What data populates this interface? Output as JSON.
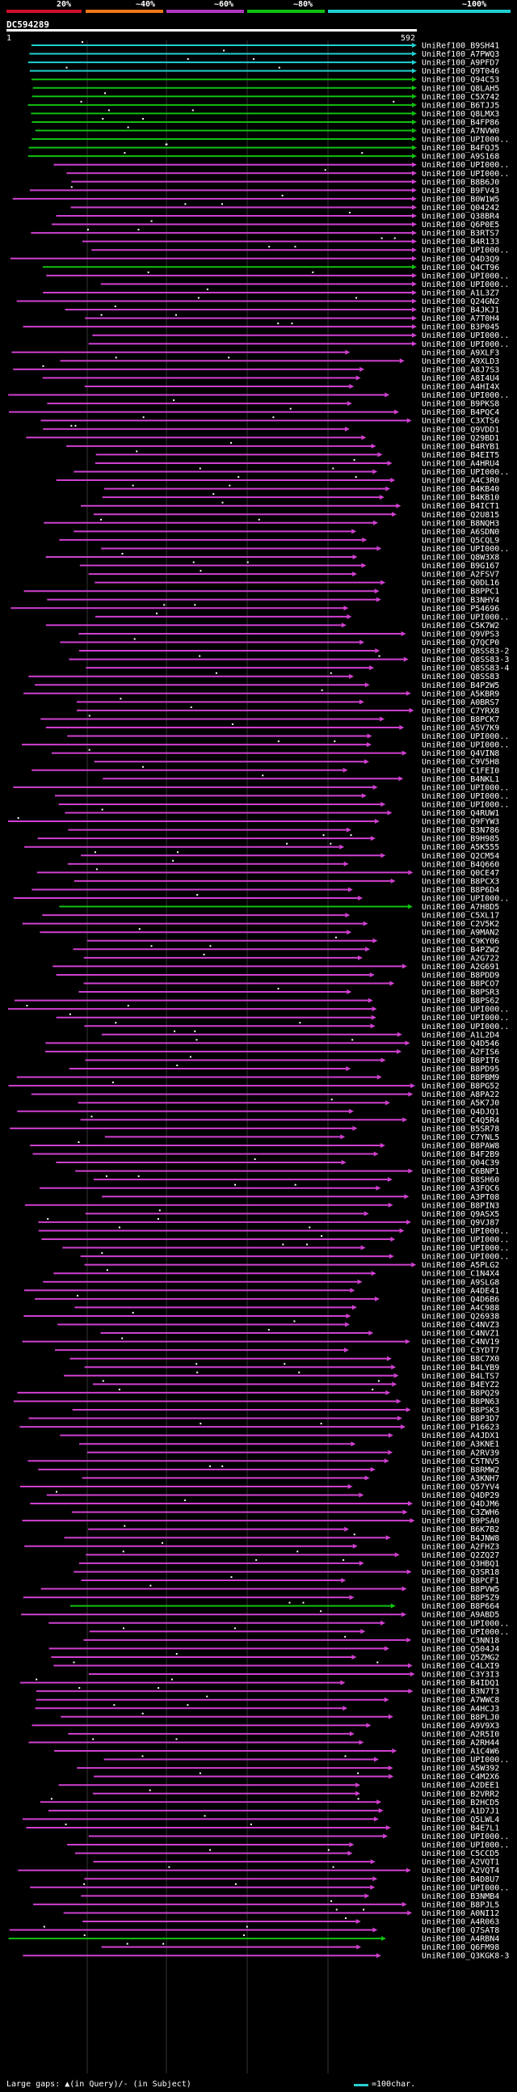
{
  "header": {
    "legend_labels": [
      "20%",
      "~40%",
      "~60%",
      "~80%",
      "~100%"
    ],
    "legend_colors": [
      "#d0102a",
      "#f07818",
      "#b038c0",
      "#10c010",
      "#20d0d0"
    ],
    "query_id": "DC594289",
    "ruler_start": "1",
    "ruler_end": "592"
  },
  "footer": {
    "gaps_text": "Large gaps: ▲(in Query)/- (in Subject)",
    "scale_text": "=100char."
  },
  "chart_data": {
    "type": "alignment",
    "query_length": 592,
    "labels": [
      "UniRef100_B9SH41",
      "UniRef100_A7PWQ3",
      "UniRef100_A9PFD7",
      "UniRef100_Q9T046",
      "UniRef100_Q94C53",
      "UniRef100_Q8LAH5",
      "UniRef100_C5X742",
      "UniRef100_B6TJJ5",
      "UniRef100_Q8LMX3",
      "UniRef100_B4FP86",
      "UniRef100_A7NVW0",
      "UniRef100_UPI000..",
      "UniRef100_B4FQJ5",
      "UniRef100_A9S168",
      "UniRef100_UPI000..",
      "UniRef100_UPI000..",
      "UniRef100_B8B6J0",
      "UniRef100_B9FV43",
      "UniRef100_B0W1W5",
      "UniRef100_Q04242",
      "UniRef100_Q38BR4",
      "UniRef100_Q6P0E5",
      "UniRef100_B3RTS7",
      "UniRef100_B4R133",
      "UniRef100_UPI000..",
      "UniRef100_Q4D3Q9",
      "UniRef100_Q4CT96",
      "UniRef100_UPI000..",
      "UniRef100_UPI000..",
      "UniRef100_A1L3Z7",
      "UniRef100_Q24GN2",
      "UniRef100_B4JKJ1",
      "UniRef100_A7T0H4",
      "UniRef100_B3P045",
      "UniRef100_UPI000..",
      "UniRef100_UPI000..",
      "UniRef100_A9XLF3",
      "UniRef100_A9XLD3",
      "UniRef100_A8J7S3",
      "UniRef100_A8I4U4",
      "UniRef100_A4HI4X",
      "UniRef100_UPI000..",
      "UniRef100_B9PKS8",
      "UniRef100_B4PQC4",
      "UniRef100_C3XTS6",
      "UniRef100_Q9VDD1",
      "UniRef100_Q29BD1",
      "UniRef100_B4RYB1",
      "UniRef100_B4EIT5",
      "UniRef100_A4HRU4",
      "UniRef100_UPI000..",
      "UniRef100_A4C3R0",
      "UniRef100_B4KB40",
      "UniRef100_B4KB10",
      "UniRef100_B4ICT1",
      "UniRef100_Q2U815",
      "UniRef100_B8NQH3",
      "UniRef100_A6SDN0",
      "UniRef100_Q5CQL9",
      "UniRef100_UPI000..",
      "UniRef100_Q8W3X8",
      "UniRef100_B9G167",
      "UniRef100_A2FSV7",
      "UniRef100_Q0DL16",
      "UniRef100_B8PPC1",
      "UniRef100_B3NHY4",
      "UniRef100_P54696",
      "UniRef100_UPI000..",
      "UniRef100_C5K7W2",
      "UniRef100_Q9VPS3",
      "UniRef100_Q7QCP0",
      "UniRef100_Q8SS83-2",
      "UniRef100_Q8SS83-3",
      "UniRef100_Q8SS83-4",
      "UniRef100_Q8SS83",
      "UniRef100_B4P2W5",
      "UniRef100_A5KBR9",
      "UniRef100_A0BRS7",
      "UniRef100_C7YRX8",
      "UniRef100_B8PCK7",
      "UniRef100_A5V7K9",
      "UniRef100_UPI000..",
      "UniRef100_UPI000..",
      "UniRef100_Q4VIN8",
      "UniRef100_C9V5H8",
      "UniRef100_C1FEI0",
      "UniRef100_B4NKL1",
      "UniRef100_UPI000..",
      "UniRef100_UPI000..",
      "UniRef100_UPI000..",
      "UniRef100_Q4RUW1",
      "UniRef100_Q9FYW3",
      "UniRef100_B3N786",
      "UniRef100_B9H985",
      "UniRef100_A5K555",
      "UniRef100_Q2CM54",
      "UniRef100_B4Q660",
      "UniRef100_Q0CE47",
      "UniRef100_B8PCX3",
      "UniRef100_B8P6D4",
      "UniRef100_UPI000..",
      "UniRef100_A7H8D5",
      "UniRef100_C5XL17",
      "UniRef100_C2V5K2",
      "UniRef100_A9MAN2",
      "UniRef100_C9KY06",
      "UniRef100_B4PZW2",
      "UniRef100_A2G722",
      "UniRef100_A2G691",
      "UniRef100_B8PDD9",
      "UniRef100_B8PCO7",
      "UniRef100_B8PSR3",
      "UniRef100_B8PS62",
      "UniRef100_UPI000..",
      "UniRef100_UPI000..",
      "UniRef100_UPI000..",
      "UniRef100_A1L2D4",
      "UniRef100_Q4D546",
      "UniRef100_A2FIS6",
      "UniRef100_B8PIT6",
      "UniRef100_B8PD95",
      "UniRef100_B8PBM9",
      "UniRef100_B8PG52",
      "UniRef100_A8PA22",
      "UniRef100_A5K7J0",
      "UniRef100_Q4DJQ1",
      "UniRef100_C4Q5R4",
      "UniRef100_B5SR78",
      "UniRef100_C7YNL5",
      "UniRef100_B8PAW8",
      "UniRef100_B4F2B9",
      "UniRef100_Q04C39",
      "UniRef100_C6BNP1",
      "UniRef100_B8SH60",
      "UniRef100_A3FQC6",
      "UniRef100_A3PT08",
      "UniRef100_B8PIN3",
      "UniRef100_Q9ASX5",
      "UniRef100_Q9VJ87",
      "UniRef100_UPI000..",
      "UniRef100_UPI000..",
      "UniRef100_UPI000..",
      "UniRef100_UPI000..",
      "UniRef100_A5PLG2",
      "UniRef100_C1N4X4",
      "UniRef100_A9SLG8",
      "UniRef100_A4DE41",
      "UniRef100_Q4D6B6",
      "UniRef100_A4C988",
      "UniRef100_Q26938",
      "UniRef100_C4NVZ3",
      "UniRef100_C4NVZ1",
      "UniRef100_C4NV19",
      "UniRef100_C3YDT7",
      "UniRef100_B8C7X0",
      "UniRef100_B4LYB9",
      "UniRef100_B4LTS7",
      "UniRef100_B4EYZ2",
      "UniRef100_B8PQ29",
      "UniRef100_B8PN63",
      "UniRef100_B8PSK3",
      "UniRef100_B8P3D7",
      "UniRef100_P16623",
      "UniRef100_A4JDX1",
      "UniRef100_A3KNE1",
      "UniRef100_A2RV39",
      "UniRef100_C5TNV5",
      "UniRef100_B8RMW2",
      "UniRef100_A3KNH7",
      "UniRef100_Q57YV4",
      "UniRef100_Q4DP29",
      "UniRef100_Q4DJM6",
      "UniRef100_C3ZWH6",
      "UniRef100_B9PSA0",
      "UniRef100_B6K7B2",
      "UniRef100_B4JNW8",
      "UniRef100_A2FHZ3",
      "UniRef100_Q2ZQ27",
      "UniRef100_Q3HBQ1",
      "UniRef100_Q3SR18",
      "UniRef100_B8PCF1",
      "UniRef100_B8PVW5",
      "UniRef100_B8P5Z9",
      "UniRef100_B8P664",
      "UniRef100_A9ABD5",
      "UniRef100_UPI000..",
      "UniRef100_UPI000..",
      "UniRef100_C3NN18",
      "UniRef100_Q504J4",
      "UniRef100_Q5ZMG2",
      "UniRef100_C4LXI9",
      "UniRef100_C3Y3I3",
      "UniRef100_B4IDQ1",
      "UniRef100_B3N7T3",
      "UniRef100_A7WWC8",
      "UniRef100_A4HCJ3",
      "UniRef100_B8PLJ0",
      "UniRef100_A9V9X3",
      "UniRef100_A2R5I0",
      "UniRef100_A2RH44",
      "UniRef100_A1C4W6",
      "UniRef100_UPI000..",
      "UniRef100_A5W392",
      "UniRef100_C4M2X6",
      "UniRef100_A2DEE1",
      "UniRef100_B2VRR2",
      "UniRef100_B2HCD5",
      "UniRef100_A1D7J1",
      "UniRef100_Q5LWL4",
      "UniRef100_B4E7L1",
      "UniRef100_UPI000..",
      "UniRef100_UPI000..",
      "UniRef100_C5CCD5",
      "UniRef100_A2VQT1",
      "UniRef100_A2VQT4",
      "UniRef100_B4D8U7",
      "UniRef100_UPI000..",
      "UniRef100_B3NMB4",
      "UniRef100_B8PJL5",
      "UniRef100_A0NI12",
      "UniRef100_A4R063",
      "UniRef100_Q7SAT8",
      "UniRef100_A4RBN4",
      "UniRef100_Q6FM98",
      "UniRef100_Q3KGK8-3"
    ]
  }
}
